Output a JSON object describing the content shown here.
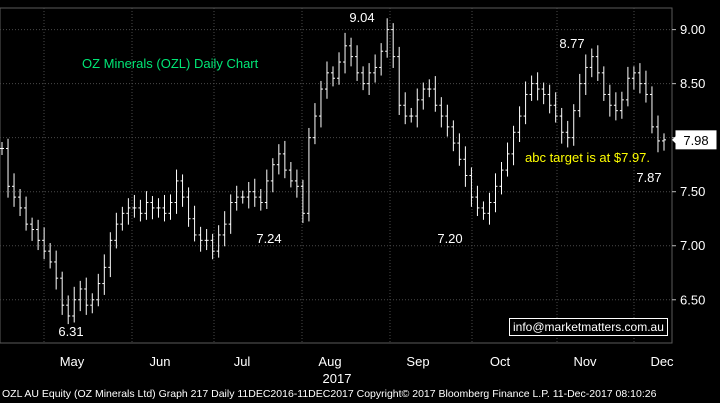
{
  "chart_data": {
    "type": "ohlc",
    "title": "OZ Minerals (OZL) Daily Chart",
    "year_label": "2017",
    "months": [
      "May",
      "Jun",
      "Jul",
      "Aug",
      "Sep",
      "Oct",
      "Nov",
      "Dec"
    ],
    "y_ticks": [
      "6.50",
      "7.00",
      "7.50",
      "8.00",
      "8.50",
      "9.00"
    ],
    "ylim": [
      6.1,
      9.2
    ],
    "last_price": "7.98",
    "grid": true,
    "annotations": [
      "9.04",
      "8.77",
      "7.24",
      "7.20",
      "6.31",
      "7.87"
    ],
    "target_label": "abc target is at $7.97.",
    "close_series": [
      7.9,
      7.55,
      7.45,
      7.35,
      7.2,
      7.15,
      7.05,
      6.95,
      6.85,
      6.7,
      6.45,
      6.35,
      6.5,
      6.6,
      6.45,
      6.5,
      6.65,
      6.8,
      7.05,
      7.2,
      7.3,
      7.35,
      7.35,
      7.3,
      7.4,
      7.35,
      7.35,
      7.3,
      7.4,
      7.6,
      7.45,
      7.25,
      7.1,
      7.05,
      7.05,
      6.95,
      7.1,
      7.2,
      7.4,
      7.45,
      7.45,
      7.5,
      7.45,
      7.4,
      7.6,
      7.75,
      7.85,
      7.7,
      7.6,
      7.55,
      7.3,
      8.0,
      8.2,
      8.45,
      8.6,
      8.55,
      8.7,
      8.85,
      8.75,
      8.6,
      8.5,
      8.6,
      8.65,
      8.8,
      9.0,
      8.75,
      8.3,
      8.2,
      8.2,
      8.35,
      8.45,
      8.45,
      8.3,
      8.2,
      8.1,
      7.95,
      7.8,
      7.65,
      7.45,
      7.35,
      7.3,
      7.4,
      7.55,
      7.7,
      7.85,
      8.05,
      8.2,
      8.4,
      8.5,
      8.45,
      8.4,
      8.3,
      8.2,
      8.05,
      8.0,
      8.25,
      8.5,
      8.65,
      8.75,
      8.6,
      8.4,
      8.3,
      8.25,
      8.35,
      8.55,
      8.6,
      8.5,
      8.4,
      8.1,
      7.97,
      7.98
    ]
  },
  "footer": {
    "text": "OZL AU Equity (OZ Minerals Ltd) Graph 217  Daily 11DEC2016-11DEC2017 Copyright© 2017 Bloomberg Finance L.P.  11-Dec-2017 08:10:26"
  },
  "email": "info@marketmatters.com.au",
  "colors": {
    "background": "#000000",
    "grid": "#4a4a4a",
    "bars": "#ffffff",
    "title": "#00e676",
    "target_text": "#ffff00",
    "axis_text": "#ffffff"
  }
}
